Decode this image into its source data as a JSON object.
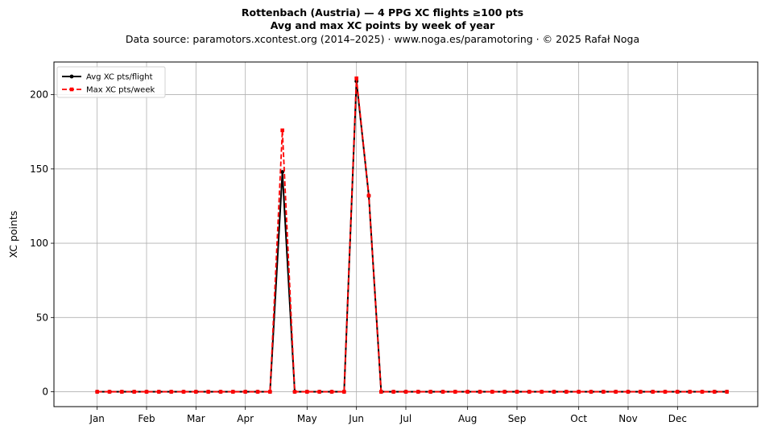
{
  "title": "Rottenbach (Austria)  —  4 PPG XC flights ≥100 pts",
  "subtitle": "Avg and max XC points by week of year",
  "source_line": "Data source: paramotors.xcontest.org (2014–2025)  ·  www.noga.es/paramotoring  ·  © 2025 Rafał Noga",
  "chart_data": {
    "type": "line",
    "xlabel": "",
    "ylabel": "XC points",
    "x_unit": "week of year",
    "xlim": [
      -2.5,
      54.5
    ],
    "ylim": [
      -10,
      222
    ],
    "grid": true,
    "legend_position": "top-left",
    "yticks": [
      0,
      50,
      100,
      150,
      200
    ],
    "xticks": [
      {
        "label": "Jan",
        "x": 1
      },
      {
        "label": "Feb",
        "x": 5
      },
      {
        "label": "Mar",
        "x": 9
      },
      {
        "label": "Apr",
        "x": 13
      },
      {
        "label": "May",
        "x": 18
      },
      {
        "label": "Jun",
        "x": 22
      },
      {
        "label": "Jul",
        "x": 26
      },
      {
        "label": "Aug",
        "x": 31
      },
      {
        "label": "Sep",
        "x": 35
      },
      {
        "label": "Oct",
        "x": 40
      },
      {
        "label": "Nov",
        "x": 44
      },
      {
        "label": "Dec",
        "x": 48
      }
    ],
    "x": [
      1,
      2,
      3,
      4,
      5,
      6,
      7,
      8,
      9,
      10,
      11,
      12,
      13,
      14,
      15,
      16,
      17,
      18,
      19,
      20,
      21,
      22,
      23,
      24,
      25,
      26,
      27,
      28,
      29,
      30,
      31,
      32,
      33,
      34,
      35,
      36,
      37,
      38,
      39,
      40,
      41,
      42,
      43,
      44,
      45,
      46,
      47,
      48,
      49,
      50,
      51,
      52
    ],
    "series": [
      {
        "name": "Avg XC pts/flight",
        "color": "#000000",
        "style": "solid",
        "marker": "circle",
        "values": [
          0,
          0,
          0,
          0,
          0,
          0,
          0,
          0,
          0,
          0,
          0,
          0,
          0,
          0,
          0,
          148,
          0,
          0,
          0,
          0,
          0,
          209,
          132,
          0,
          0,
          0,
          0,
          0,
          0,
          0,
          0,
          0,
          0,
          0,
          0,
          0,
          0,
          0,
          0,
          0,
          0,
          0,
          0,
          0,
          0,
          0,
          0,
          0,
          0,
          0,
          0,
          0
        ]
      },
      {
        "name": "Max XC pts/week",
        "color": "#ff0000",
        "style": "dashed",
        "marker": "square",
        "values": [
          0,
          0,
          0,
          0,
          0,
          0,
          0,
          0,
          0,
          0,
          0,
          0,
          0,
          0,
          0,
          176,
          0,
          0,
          0,
          0,
          0,
          211,
          132,
          0,
          0,
          0,
          0,
          0,
          0,
          0,
          0,
          0,
          0,
          0,
          0,
          0,
          0,
          0,
          0,
          0,
          0,
          0,
          0,
          0,
          0,
          0,
          0,
          0,
          0,
          0,
          0,
          0
        ]
      }
    ]
  }
}
